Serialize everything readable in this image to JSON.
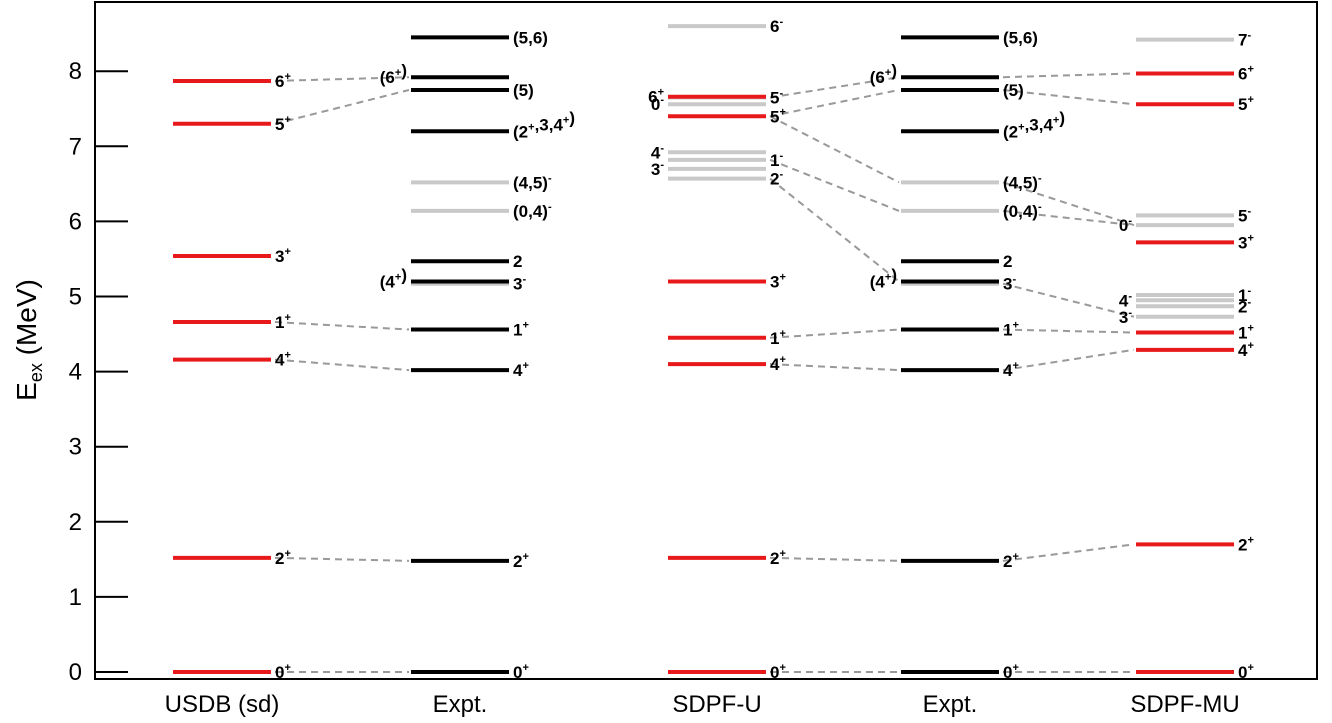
{
  "chart_data": {
    "type": "level-scheme",
    "ylabel_main": "E",
    "ylabel_sub": "ex",
    "ylabel_unit": " (MeV)",
    "ylim": [
      -0.1,
      8.9
    ],
    "yticks": [
      "0",
      "1",
      "2",
      "3",
      "4",
      "5",
      "6",
      "7",
      "8"
    ],
    "colors": {
      "positive": "#e8191b",
      "negative": "#c9c9c9",
      "experiment": "#000000",
      "connector": "#999999"
    },
    "columns": [
      {
        "name": "USDB (sd)",
        "levels": [
          {
            "e": 0.0,
            "label": "0+",
            "color": "positive",
            "side": "right"
          },
          {
            "e": 1.52,
            "label": "2+",
            "color": "positive",
            "side": "right"
          },
          {
            "e": 4.16,
            "label": "4+",
            "color": "positive",
            "side": "right"
          },
          {
            "e": 4.66,
            "label": "1+",
            "color": "positive",
            "side": "right"
          },
          {
            "e": 5.54,
            "label": "3+",
            "color": "positive",
            "side": "right"
          },
          {
            "e": 7.3,
            "label": "5+",
            "color": "positive",
            "side": "right"
          },
          {
            "e": 7.87,
            "label": "6+",
            "color": "positive",
            "side": "right"
          }
        ]
      },
      {
        "name": "Expt.",
        "levels": [
          {
            "e": 0.0,
            "label": "0+",
            "color": "experiment",
            "side": "right"
          },
          {
            "e": 1.48,
            "label": "2+",
            "color": "experiment",
            "side": "right"
          },
          {
            "e": 4.02,
            "label": "4+",
            "color": "experiment",
            "side": "right"
          },
          {
            "e": 4.56,
            "label": "1+",
            "color": "experiment",
            "side": "right"
          },
          {
            "e": 5.17,
            "label": "3-",
            "color": "negative",
            "side": "right"
          },
          {
            "e": 5.2,
            "label": "(4+)",
            "color": "experiment",
            "side": "left"
          },
          {
            "e": 5.47,
            "label": "2",
            "color": "experiment",
            "side": "right"
          },
          {
            "e": 6.14,
            "label": "(0,4)-",
            "color": "negative",
            "side": "right"
          },
          {
            "e": 6.52,
            "label": "(4,5)-",
            "color": "negative",
            "side": "right"
          },
          {
            "e": 7.2,
            "label": "(2+,3,4+)",
            "color": "experiment",
            "side": "right"
          },
          {
            "e": 7.75,
            "label": "(5)",
            "color": "experiment",
            "side": "right"
          },
          {
            "e": 7.92,
            "label": "(6+)",
            "color": "experiment",
            "side": "left"
          },
          {
            "e": 8.45,
            "label": "(5,6)",
            "color": "experiment",
            "side": "right"
          }
        ]
      },
      {
        "name": "SDPF-U",
        "levels": [
          {
            "e": 0.0,
            "label": "0+",
            "color": "positive",
            "side": "right"
          },
          {
            "e": 1.52,
            "label": "2+",
            "color": "positive",
            "side": "right"
          },
          {
            "e": 4.1,
            "label": "4+",
            "color": "positive",
            "side": "right"
          },
          {
            "e": 4.45,
            "label": "1+",
            "color": "positive",
            "side": "right"
          },
          {
            "e": 5.2,
            "label": "3+",
            "color": "positive",
            "side": "right"
          },
          {
            "e": 6.57,
            "label": "2-",
            "color": "negative",
            "side": "right"
          },
          {
            "e": 6.7,
            "label": "3-",
            "color": "negative",
            "side": "left"
          },
          {
            "e": 6.82,
            "label": "1-",
            "color": "negative",
            "side": "right"
          },
          {
            "e": 6.92,
            "label": "4-",
            "color": "negative",
            "side": "left"
          },
          {
            "e": 7.4,
            "label": "5+",
            "color": "positive",
            "side": "right"
          },
          {
            "e": 7.56,
            "label": "0-",
            "color": "negative",
            "side": "left"
          },
          {
            "e": 7.65,
            "label": "5-",
            "color": "negative",
            "side": "right"
          },
          {
            "e": 7.66,
            "label": "6+",
            "color": "positive",
            "side": "left"
          },
          {
            "e": 8.6,
            "label": "6-",
            "color": "negative",
            "side": "right"
          }
        ]
      },
      {
        "name": "Expt.",
        "levels": [
          {
            "e": 0.0,
            "label": "0+",
            "color": "experiment",
            "side": "right"
          },
          {
            "e": 1.48,
            "label": "2+",
            "color": "experiment",
            "side": "right"
          },
          {
            "e": 4.02,
            "label": "4+",
            "color": "experiment",
            "side": "right"
          },
          {
            "e": 4.56,
            "label": "1+",
            "color": "experiment",
            "side": "right"
          },
          {
            "e": 5.17,
            "label": "3-",
            "color": "negative",
            "side": "right"
          },
          {
            "e": 5.2,
            "label": "(4+)",
            "color": "experiment",
            "side": "left"
          },
          {
            "e": 5.47,
            "label": "2",
            "color": "experiment",
            "side": "right"
          },
          {
            "e": 6.14,
            "label": "(0,4)-",
            "color": "negative",
            "side": "right"
          },
          {
            "e": 6.52,
            "label": "(4,5)-",
            "color": "negative",
            "side": "right"
          },
          {
            "e": 7.2,
            "label": "(2+,3,4+)",
            "color": "experiment",
            "side": "right"
          },
          {
            "e": 7.75,
            "label": "(5)",
            "color": "experiment",
            "side": "right"
          },
          {
            "e": 7.92,
            "label": "(6+)",
            "color": "experiment",
            "side": "left"
          },
          {
            "e": 8.45,
            "label": "(5,6)",
            "color": "experiment",
            "side": "right"
          }
        ]
      },
      {
        "name": "SDPF-MU",
        "levels": [
          {
            "e": 0.0,
            "label": "0+",
            "color": "positive",
            "side": "right"
          },
          {
            "e": 1.7,
            "label": "2+",
            "color": "positive",
            "side": "right"
          },
          {
            "e": 4.29,
            "label": "4+",
            "color": "positive",
            "side": "right"
          },
          {
            "e": 4.52,
            "label": "1+",
            "color": "positive",
            "side": "right"
          },
          {
            "e": 4.73,
            "label": "3-",
            "color": "negative",
            "side": "left"
          },
          {
            "e": 4.87,
            "label": "2-",
            "color": "negative",
            "side": "right"
          },
          {
            "e": 4.95,
            "label": "4-",
            "color": "negative",
            "side": "left"
          },
          {
            "e": 5.02,
            "label": "1-",
            "color": "negative",
            "side": "right"
          },
          {
            "e": 5.72,
            "label": "3+",
            "color": "positive",
            "side": "right"
          },
          {
            "e": 5.95,
            "label": "0-",
            "color": "negative",
            "side": "left"
          },
          {
            "e": 6.08,
            "label": "5-",
            "color": "negative",
            "side": "right"
          },
          {
            "e": 7.56,
            "label": "5+",
            "color": "positive",
            "side": "right"
          },
          {
            "e": 7.97,
            "label": "6+",
            "color": "positive",
            "side": "right"
          },
          {
            "e": 8.42,
            "label": "7-",
            "color": "negative",
            "side": "right"
          }
        ]
      }
    ],
    "connectors": [
      {
        "from": [
          0,
          0.0
        ],
        "to": [
          1,
          0.0
        ]
      },
      {
        "from": [
          0,
          1.52
        ],
        "to": [
          1,
          1.48
        ]
      },
      {
        "from": [
          0,
          4.16
        ],
        "to": [
          1,
          4.02
        ]
      },
      {
        "from": [
          0,
          4.66
        ],
        "to": [
          1,
          4.56
        ]
      },
      {
        "from": [
          0,
          7.3
        ],
        "to": [
          1,
          7.75
        ]
      },
      {
        "from": [
          0,
          7.87
        ],
        "to": [
          1,
          7.92
        ]
      },
      {
        "from": [
          2,
          0.0
        ],
        "to": [
          3,
          0.0
        ]
      },
      {
        "from": [
          2,
          1.52
        ],
        "to": [
          3,
          1.48
        ]
      },
      {
        "from": [
          2,
          4.1
        ],
        "to": [
          3,
          4.02
        ]
      },
      {
        "from": [
          2,
          4.45
        ],
        "to": [
          3,
          4.56
        ]
      },
      {
        "from": [
          2,
          6.57
        ],
        "to": [
          3,
          5.2
        ]
      },
      {
        "from": [
          2,
          6.82
        ],
        "to": [
          3,
          6.14
        ]
      },
      {
        "from": [
          2,
          7.4
        ],
        "to": [
          3,
          6.52
        ]
      },
      {
        "from": [
          2,
          7.4
        ],
        "to": [
          3,
          7.75
        ]
      },
      {
        "from": [
          2,
          7.65
        ],
        "to": [
          3,
          7.92
        ]
      },
      {
        "from": [
          3,
          0.0
        ],
        "to": [
          4,
          0.0
        ]
      },
      {
        "from": [
          3,
          1.48
        ],
        "to": [
          4,
          1.7
        ]
      },
      {
        "from": [
          3,
          4.02
        ],
        "to": [
          4,
          4.29
        ]
      },
      {
        "from": [
          3,
          4.56
        ],
        "to": [
          4,
          4.52
        ]
      },
      {
        "from": [
          3,
          5.17
        ],
        "to": [
          4,
          4.73
        ]
      },
      {
        "from": [
          3,
          6.14
        ],
        "to": [
          4,
          5.95
        ]
      },
      {
        "from": [
          3,
          6.52
        ],
        "to": [
          4,
          5.95
        ]
      },
      {
        "from": [
          3,
          7.75
        ],
        "to": [
          4,
          7.56
        ]
      },
      {
        "from": [
          3,
          7.92
        ],
        "to": [
          4,
          7.97
        ]
      }
    ]
  }
}
